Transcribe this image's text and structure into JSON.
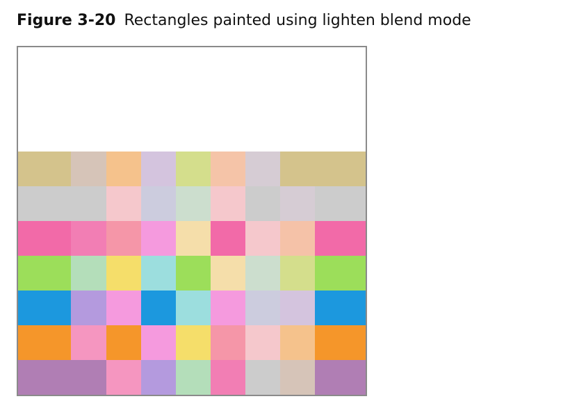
{
  "caption": {
    "label": "Figure 3-20",
    "title": "Rectangles painted using lighten blend mode"
  },
  "figure": {
    "background": "#ffffff",
    "rows": [
      [
        "#d4c38c",
        "#d6c4b8",
        "#f5c28c",
        "#d4c4de",
        "#d4de8c",
        "#f5c4a8",
        "#d6ccd4",
        "#d4c38c",
        "#d4c38c"
      ],
      [
        "#cccccc",
        "#cccccc",
        "#f5c8cc",
        "#ccccde",
        "#ccdece",
        "#f5c8cc",
        "#cccccc",
        "#d6ccd4",
        "#cccccc"
      ],
      [
        "#f26aa8",
        "#f27eb4",
        "#f596a8",
        "#f59ade",
        "#f5deaa",
        "#f26aa8",
        "#f5c8cc",
        "#f5c2a8",
        "#f26aa8"
      ],
      [
        "#9cde5a",
        "#b4deba",
        "#f5de6a",
        "#9cdede",
        "#9cde5a",
        "#f5deaa",
        "#ccdece",
        "#d4de8c",
        "#9cde5a"
      ],
      [
        "#1c98de",
        "#b49ade",
        "#f59ade",
        "#1c98de",
        "#9cdede",
        "#f59ade",
        "#ccccde",
        "#d4c4de",
        "#1c98de"
      ],
      [
        "#f5962a",
        "#f596c0",
        "#f5962a",
        "#f59ade",
        "#f5de6a",
        "#f596a8",
        "#f5c8cc",
        "#f5c28c",
        "#f5962a"
      ],
      [
        "#b07eb4",
        "#b07eb4",
        "#f596c0",
        "#b49ade",
        "#b4deba",
        "#f27eb4",
        "#cccccc",
        "#d6c4b8",
        "#b07eb4"
      ]
    ]
  }
}
